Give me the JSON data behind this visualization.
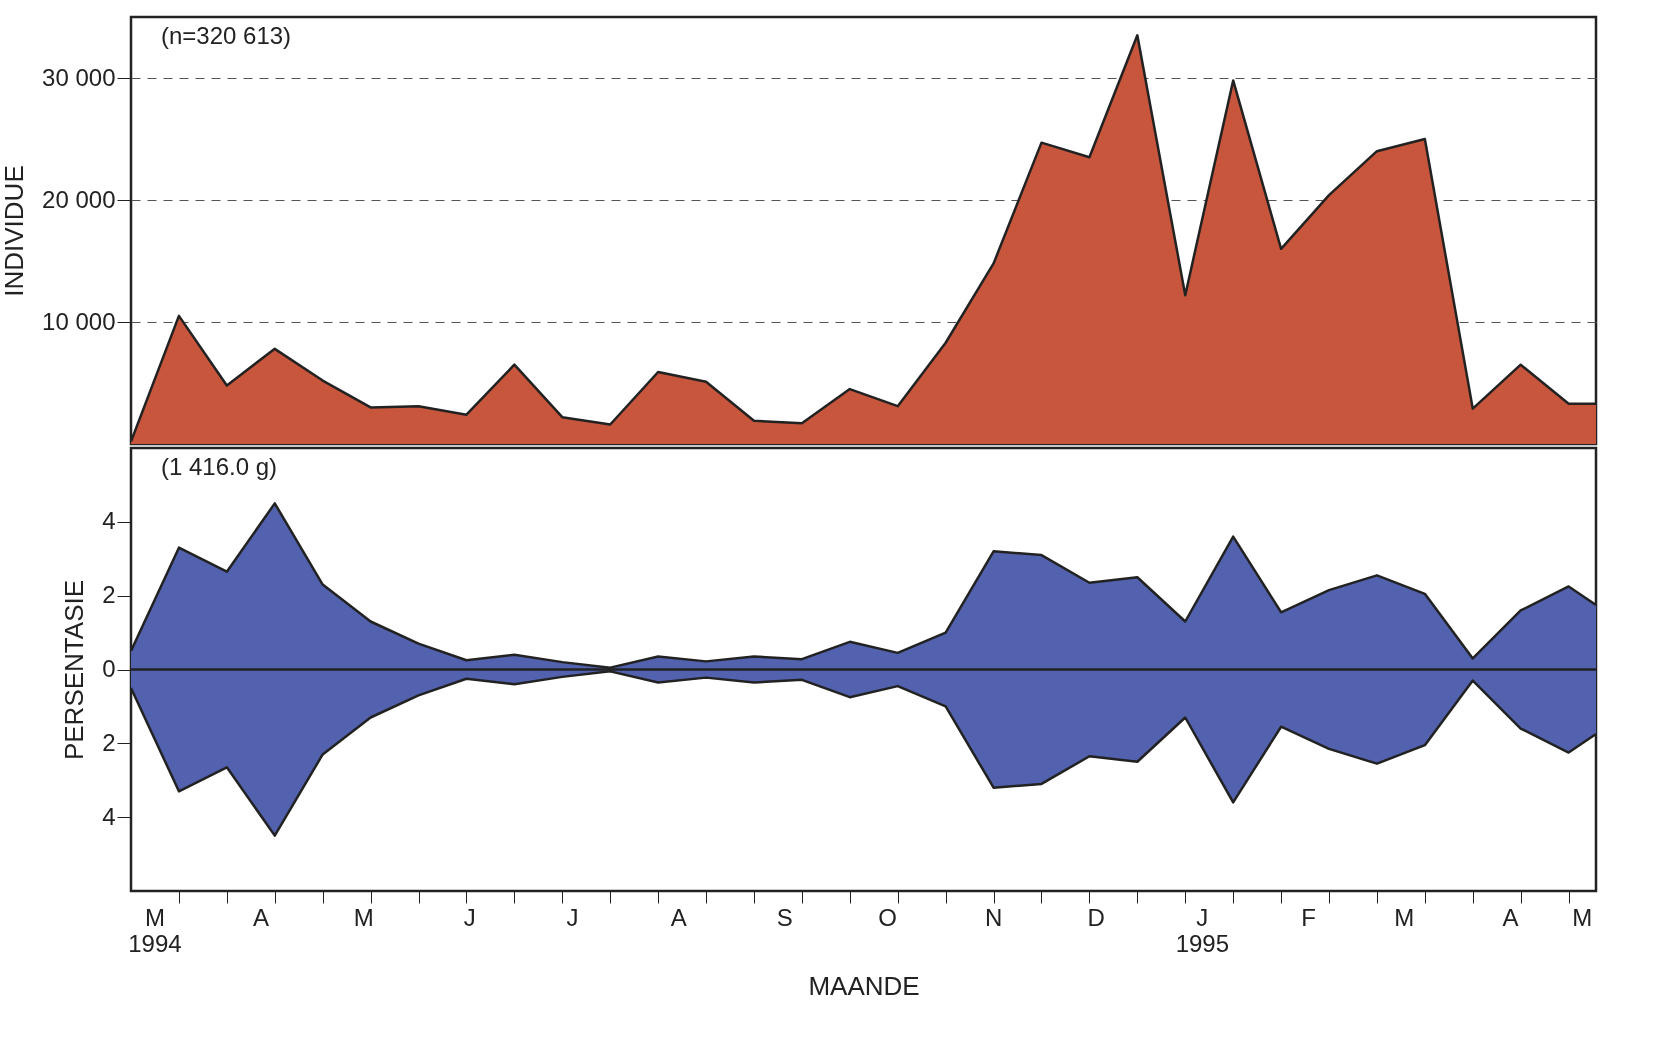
{
  "chart_data": [
    {
      "type": "area",
      "ylabel": "INDIVIDUE",
      "annotations": [
        "(n=320 613)"
      ],
      "x": [
        "1994-03-08",
        "1994-03-22",
        "1994-04-05",
        "1994-04-19",
        "1994-05-03",
        "1994-05-17",
        "1994-05-31",
        "1994-06-14",
        "1994-06-28",
        "1994-07-12",
        "1994-07-26",
        "1994-08-09",
        "1994-08-23",
        "1994-09-06",
        "1994-09-20",
        "1994-10-04",
        "1994-10-18",
        "1994-11-01",
        "1994-11-15",
        "1994-11-29",
        "1994-12-13",
        "1994-12-27",
        "1995-01-10",
        "1995-01-24",
        "1995-02-07",
        "1995-02-21",
        "1995-03-07",
        "1995-03-21",
        "1995-04-04",
        "1995-04-18",
        "1995-05-02",
        "1995-05-10"
      ],
      "series": [
        {
          "color": "#c8563c",
          "values": [
            200,
            10500,
            4800,
            7800,
            5200,
            3000,
            3100,
            2400,
            6500,
            2200,
            1600,
            5900,
            5100,
            1900,
            1700,
            4500,
            3100,
            8300,
            14800,
            24700,
            23500,
            33500,
            12200,
            29800,
            16000,
            20400,
            24000,
            25000,
            2900,
            6500,
            3300,
            3300
          ]
        }
      ],
      "xlim": [
        "1994-03-08",
        "1995-05-10"
      ],
      "ylim": [
        0,
        35000
      ],
      "yticks": [
        {
          "value": 10000,
          "label": "10 000"
        },
        {
          "value": 20000,
          "label": "20 000"
        },
        {
          "value": 30000,
          "label": "30 000"
        }
      ],
      "grid": "y",
      "tick_labels": "y",
      "legend": false
    },
    {
      "type": "area",
      "ylabel": "PERSENTASIE",
      "xlabel": "MAANDE",
      "annotations": [
        "(1 416.0 g)"
      ],
      "x": [
        "1994-03-08",
        "1994-03-22",
        "1994-04-05",
        "1994-04-19",
        "1994-05-03",
        "1994-05-17",
        "1994-05-31",
        "1994-06-14",
        "1994-06-28",
        "1994-07-12",
        "1994-07-26",
        "1994-08-09",
        "1994-08-23",
        "1994-09-06",
        "1994-09-20",
        "1994-10-04",
        "1994-10-18",
        "1994-11-01",
        "1994-11-15",
        "1994-11-29",
        "1994-12-13",
        "1994-12-27",
        "1995-01-10",
        "1995-01-24",
        "1995-02-07",
        "1995-02-21",
        "1995-03-07",
        "1995-03-21",
        "1995-04-04",
        "1995-04-18",
        "1995-05-02",
        "1995-05-10"
      ],
      "series": [
        {
          "color": "#5262ae",
          "values": [
            0.5,
            3.3,
            2.65,
            4.5,
            2.3,
            1.3,
            0.7,
            0.25,
            0.4,
            0.2,
            0.05,
            0.35,
            0.22,
            0.35,
            0.28,
            0.75,
            0.45,
            1.0,
            3.2,
            3.1,
            2.35,
            2.5,
            1.3,
            3.6,
            1.55,
            2.15,
            2.55,
            2.05,
            0.3,
            1.6,
            2.25,
            1.75
          ]
        },
        {
          "color": "#5262ae",
          "values": [
            -0.5,
            -3.3,
            -2.65,
            -4.5,
            -2.3,
            -1.3,
            -0.7,
            -0.25,
            -0.4,
            -0.2,
            -0.05,
            -0.35,
            -0.22,
            -0.35,
            -0.28,
            -0.75,
            -0.45,
            -1.0,
            -3.2,
            -3.1,
            -2.35,
            -2.5,
            -1.3,
            -3.6,
            -1.55,
            -2.15,
            -2.55,
            -2.05,
            -0.3,
            -1.6,
            -2.25,
            -1.75
          ]
        }
      ],
      "ref_lines": [
        {
          "axis": "y",
          "value": 0,
          "color": "#222222"
        }
      ],
      "xlim": [
        "1994-03-08",
        "1995-05-10"
      ],
      "ylim": [
        -6,
        6
      ],
      "yticks": [
        {
          "value": -4,
          "label": "4"
        },
        {
          "value": -2,
          "label": "2"
        },
        0,
        2,
        4
      ],
      "xticks": [
        {
          "value": "1994-03-22",
          "label": null
        },
        {
          "value": "1994-04-05",
          "label": null
        },
        {
          "value": "1994-04-19",
          "label": null
        },
        {
          "value": "1994-05-03",
          "label": null
        },
        {
          "value": "1994-05-17",
          "label": null
        },
        {
          "value": "1994-05-31",
          "label": null
        },
        {
          "value": "1994-06-14",
          "label": null
        },
        {
          "value": "1994-06-28",
          "label": null
        },
        {
          "value": "1994-07-12",
          "label": null
        },
        {
          "value": "1994-07-26",
          "label": null
        },
        {
          "value": "1994-08-09",
          "label": null
        },
        {
          "value": "1994-08-23",
          "label": null
        },
        {
          "value": "1994-09-06",
          "label": null
        },
        {
          "value": "1994-09-20",
          "label": null
        },
        {
          "value": "1994-10-04",
          "label": null
        },
        {
          "value": "1994-10-18",
          "label": null
        },
        {
          "value": "1994-11-01",
          "label": null
        },
        {
          "value": "1994-11-15",
          "label": null
        },
        {
          "value": "1994-11-29",
          "label": null
        },
        {
          "value": "1994-12-13",
          "label": null
        },
        {
          "value": "1994-12-27",
          "label": null
        },
        {
          "value": "1995-01-10",
          "label": null
        },
        {
          "value": "1995-01-24",
          "label": null
        },
        {
          "value": "1995-02-07",
          "label": null
        },
        {
          "value": "1995-02-21",
          "label": null
        },
        {
          "value": "1995-03-07",
          "label": null
        },
        {
          "value": "1995-03-21",
          "label": null
        },
        {
          "value": "1995-04-04",
          "label": null
        },
        {
          "value": "1995-04-18",
          "label": null
        },
        {
          "value": "1995-05-02",
          "label": null
        },
        {
          "value": "1994-03-15",
          "label": "M\n1994"
        },
        {
          "value": "1994-04-15",
          "label": "A"
        },
        {
          "value": "1994-05-15",
          "label": "M"
        },
        {
          "value": "1994-06-15",
          "label": "J"
        },
        {
          "value": "1994-07-15",
          "label": "J"
        },
        {
          "value": "1994-08-15",
          "label": "A"
        },
        {
          "value": "1994-09-15",
          "label": "S"
        },
        {
          "value": "1994-10-15",
          "label": "O"
        },
        {
          "value": "1994-11-15",
          "label": "N"
        },
        {
          "value": "1994-12-15",
          "label": "D"
        },
        {
          "value": "1995-01-15",
          "label": "J\n1995"
        },
        {
          "value": "1995-02-15",
          "label": "F"
        },
        {
          "value": "1995-03-15",
          "label": "M"
        },
        {
          "value": "1995-04-15",
          "label": "A"
        },
        {
          "value": "1995-05-06",
          "label": "M"
        }
      ],
      "grid": false,
      "legend": false
    }
  ]
}
